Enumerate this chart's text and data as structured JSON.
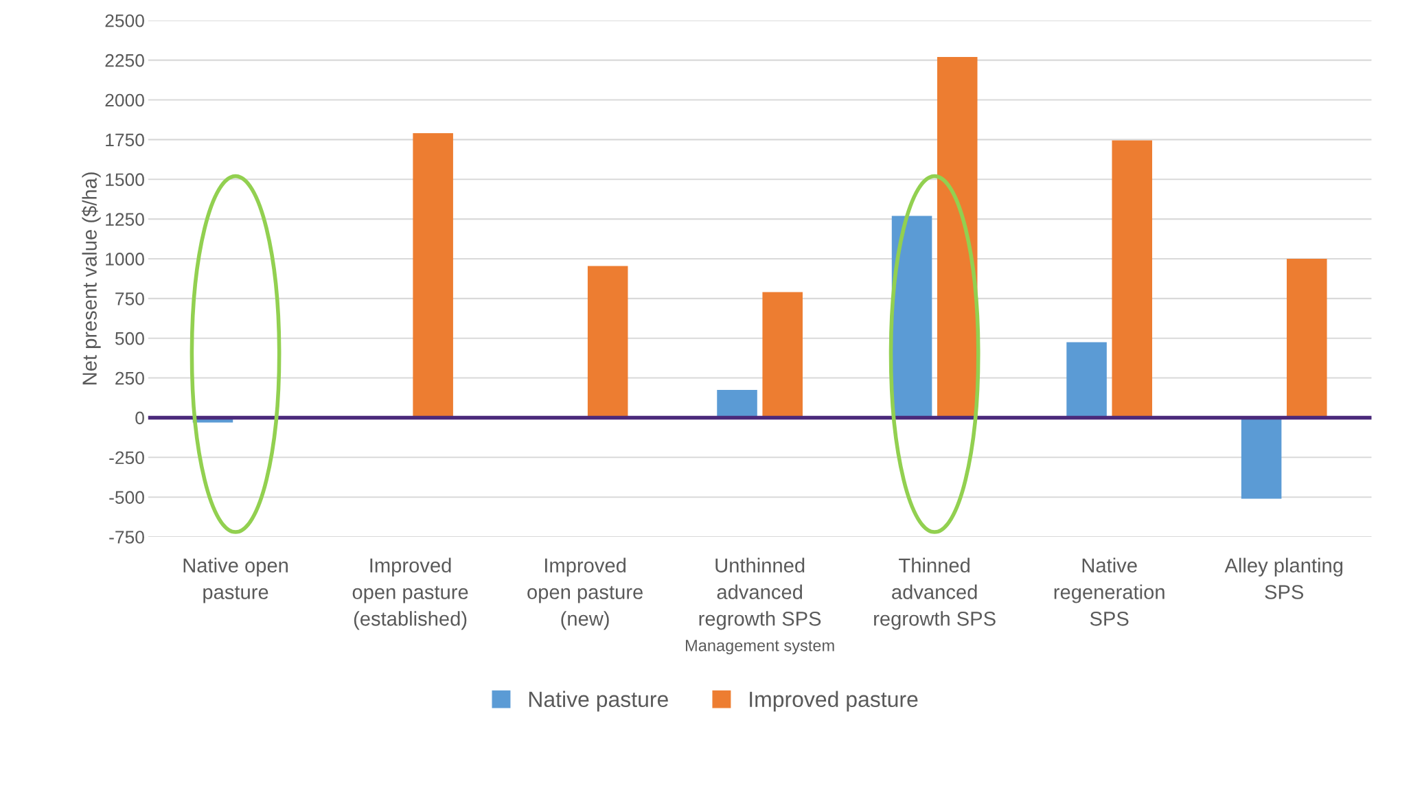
{
  "chart_data": {
    "type": "bar",
    "xlabel": "Management system",
    "ylabel": "Net present value ($/ha)",
    "categories": [
      "Native open\npasture",
      "Improved\nopen pasture\n(established)",
      "Improved\nopen pasture\n(new)",
      "Unthinned\nadvanced\nregrowth SPS",
      "Thinned\nadvanced\nregrowth SPS",
      "Native\nregeneration\nSPS",
      "Alley planting\nSPS"
    ],
    "series": [
      {
        "name": "Native pasture",
        "color": "#5b9bd5",
        "values": [
          -30,
          null,
          null,
          175,
          1270,
          475,
          -510
        ]
      },
      {
        "name": "Improved pasture",
        "color": "#ed7d31",
        "values": [
          null,
          1790,
          955,
          790,
          2270,
          1745,
          1000
        ]
      }
    ],
    "ylim": [
      -750,
      2500
    ],
    "yticks": [
      -750,
      -500,
      -250,
      0,
      250,
      500,
      750,
      1000,
      1250,
      1500,
      1750,
      2000,
      2250,
      2500
    ],
    "ref_lines": [
      {
        "axis": "y",
        "value": 0,
        "color": "#4b2a7b"
      }
    ],
    "grid": "y",
    "legend": "bottom"
  }
}
